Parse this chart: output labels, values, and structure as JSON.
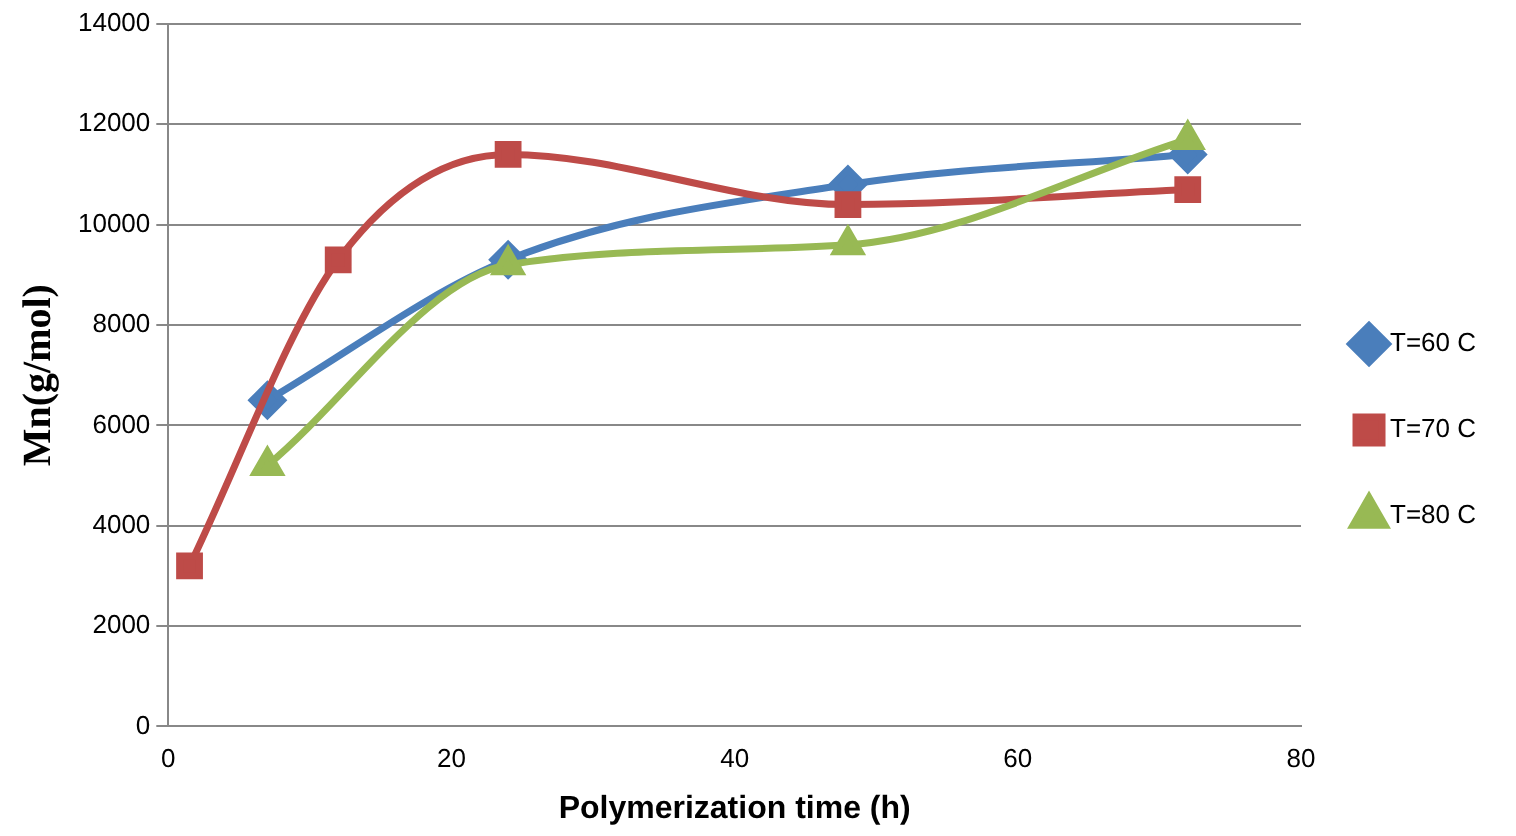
{
  "chart_data": {
    "type": "line",
    "xlabel": "Polymerization time (h)",
    "ylabel": "Mn(g/mol)",
    "xlim": [
      0,
      80
    ],
    "xticks": [
      0,
      20,
      40,
      60,
      80
    ],
    "ylim": [
      0,
      14000
    ],
    "yticks": [
      0,
      2000,
      4000,
      6000,
      8000,
      10000,
      12000,
      14000
    ],
    "grid": "y",
    "legend": "right",
    "series": [
      {
        "name": "T=60 C",
        "color": "#4a7ebb",
        "marker": "diamond",
        "x": [
          7,
          24,
          48,
          72
        ],
        "values": [
          6500,
          9300,
          10800,
          11400
        ]
      },
      {
        "name": "T=70 C",
        "color": "#be4b48",
        "marker": "square",
        "x": [
          1.5,
          12,
          24,
          48,
          72
        ],
        "values": [
          3200,
          9300,
          11400,
          10400,
          10700
        ]
      },
      {
        "name": "T=80 C",
        "color": "#98b954",
        "marker": "triangle",
        "x": [
          7,
          24,
          48,
          72
        ],
        "values": [
          5200,
          9200,
          9600,
          11700
        ]
      }
    ]
  }
}
